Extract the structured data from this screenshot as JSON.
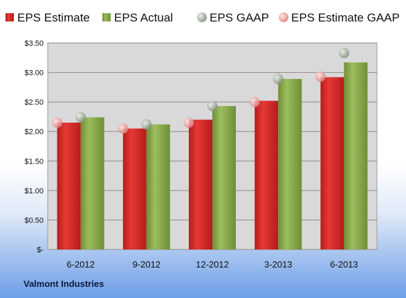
{
  "footer": {
    "title": "Valmont Industries"
  },
  "chart_data": {
    "type": "bar",
    "categories": [
      "6-2012",
      "9-2012",
      "12-2012",
      "3-2013",
      "6-2013"
    ],
    "series": [
      {
        "name": "EPS Estimate",
        "kind": "bar",
        "color": "#cc2222",
        "values": [
          2.15,
          2.05,
          2.2,
          2.52,
          2.92
        ]
      },
      {
        "name": "EPS Actual",
        "kind": "bar",
        "color": "#86a84a",
        "values": [
          2.24,
          2.12,
          2.43,
          2.89,
          3.17
        ]
      },
      {
        "name": "EPS GAAP",
        "kind": "point",
        "color": "#8a9a84",
        "values": [
          2.24,
          2.12,
          2.43,
          2.89,
          3.33
        ]
      },
      {
        "name": "EPS Estimate GAAP",
        "kind": "point",
        "color": "#e88a8a",
        "values": [
          2.15,
          2.05,
          2.15,
          2.5,
          2.93
        ]
      }
    ],
    "y_ticks": [
      {
        "value": 0,
        "label": "$-"
      },
      {
        "value": 0.5,
        "label": "$0.50"
      },
      {
        "value": 1.0,
        "label": "$1.00"
      },
      {
        "value": 1.5,
        "label": "$1.50"
      },
      {
        "value": 2.0,
        "label": "$2.00"
      },
      {
        "value": 2.5,
        "label": "$2.50"
      },
      {
        "value": 3.0,
        "label": "$3.00"
      },
      {
        "value": 3.5,
        "label": "$3.50"
      }
    ],
    "ylim": [
      0,
      3.5
    ],
    "grid": true,
    "legend_position": "top",
    "plot_background": "#d9d9d9"
  }
}
